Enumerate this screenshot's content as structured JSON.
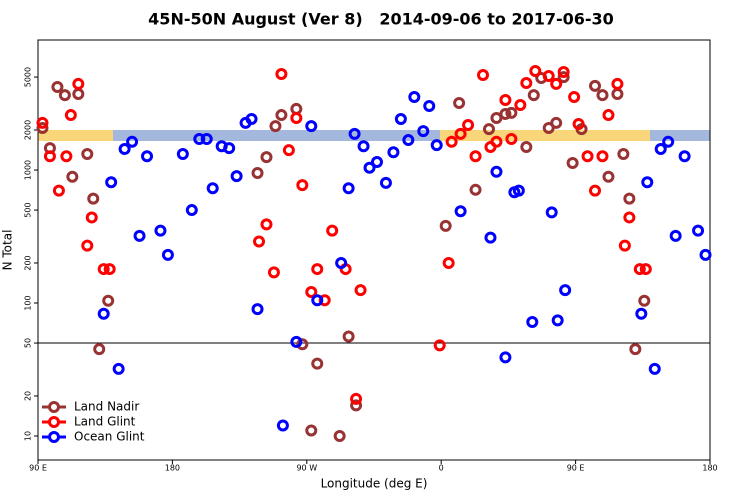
{
  "chart_data": {
    "type": "scatter",
    "title": "45N-50N August (Ver 8)   2014-09-06 to 2017-06-30",
    "x_label": "Longitude (deg E)",
    "y_label": "N Total",
    "log_y": true,
    "xlim": [
      90,
      540
    ],
    "ylim": [
      6.6,
      9500
    ],
    "xticks": [
      {
        "value": 90,
        "label": "90 E"
      },
      {
        "value": 180,
        "label": "180"
      },
      {
        "value": 270,
        "label": "90 W"
      },
      {
        "value": 360,
        "label": "0"
      },
      {
        "value": 450,
        "label": "90 E"
      },
      {
        "value": 540,
        "label": "180"
      }
    ],
    "yticks": [
      10,
      20,
      50,
      100,
      200,
      500,
      1000,
      2000,
      5000
    ],
    "hline": 50,
    "legend": "bottom-left",
    "series": [
      {
        "name": "Land Nadir",
        "color": "#993333",
        "x": [
          93,
          98,
          103,
          108,
          113,
          117,
          123,
          127,
          131,
          137,
          237,
          243,
          249,
          253,
          263,
          267,
          277,
          273,
          292,
          298,
          303,
          363,
          372,
          383,
          392,
          397,
          403,
          407,
          417,
          422,
          427,
          432,
          437,
          442,
          448,
          454,
          463,
          468,
          472,
          478,
          482,
          486,
          490,
          496
        ],
        "values": [
          2070,
          1460,
          4210,
          3660,
          890,
          3730,
          1320,
          610,
          45,
          104,
          950,
          1250,
          2140,
          2590,
          2880,
          49,
          35,
          11,
          10,
          56,
          17,
          380,
          3190,
          710,
          2030,
          2460,
          2640,
          2690,
          1490,
          3660,
          4920,
          2070,
          2260,
          5000,
          1130,
          2030,
          4290,
          3660,
          890,
          3730,
          1320,
          610,
          45,
          104
        ]
      },
      {
        "name": "Land Glint",
        "color": "#ff0000",
        "x": [
          93,
          98,
          104,
          109,
          112,
          117,
          123,
          126,
          134,
          138,
          238,
          243,
          248,
          253,
          258,
          263,
          267,
          273,
          277,
          282,
          287,
          296,
          306,
          303,
          359,
          365,
          367,
          373,
          378,
          383,
          388,
          393,
          397,
          403,
          407,
          413,
          417,
          423,
          432,
          437,
          442,
          449,
          452,
          458,
          463,
          468,
          472,
          478,
          483,
          486,
          493,
          497
        ],
        "values": [
          2260,
          1270,
          700,
          1270,
          2590,
          4440,
          270,
          440,
          180,
          180,
          290,
          390,
          170,
          5270,
          1410,
          2460,
          770,
          121,
          180,
          105,
          350,
          180,
          125,
          19,
          48,
          200,
          1630,
          1870,
          2180,
          1270,
          5180,
          1490,
          1630,
          3360,
          1710,
          3080,
          4510,
          5550,
          5090,
          4440,
          5460,
          3540,
          2220,
          1270,
          700,
          1270,
          2590,
          4440,
          270,
          440,
          180,
          180
        ]
      },
      {
        "name": "Ocean Glint",
        "color": "#0000ff",
        "x": [
          134,
          139,
          144,
          148,
          153,
          158,
          163,
          172,
          177,
          187,
          193,
          198,
          203,
          207,
          213,
          218,
          223,
          229,
          233,
          237,
          254,
          263,
          273,
          277,
          293,
          298,
          302,
          308,
          312,
          317,
          323,
          328,
          333,
          338,
          342,
          348,
          352,
          357,
          373,
          393,
          397,
          403,
          409,
          412,
          421,
          434,
          438,
          443,
          494,
          498,
          503,
          507,
          512,
          517,
          523,
          532,
          537
        ],
        "values": [
          83,
          810,
          32,
          1440,
          1630,
          320,
          1270,
          350,
          230,
          1320,
          500,
          1710,
          1710,
          730,
          1510,
          1460,
          900,
          2260,
          2420,
          90,
          12,
          51,
          2140,
          105,
          200,
          730,
          1870,
          1510,
          1040,
          1150,
          800,
          1360,
          2420,
          1680,
          3540,
          1960,
          3030,
          1540,
          490,
          310,
          970,
          39,
          680,
          700,
          72,
          480,
          74,
          125,
          83,
          810,
          32,
          1440,
          1630,
          320,
          1270,
          350,
          230
        ]
      }
    ]
  }
}
